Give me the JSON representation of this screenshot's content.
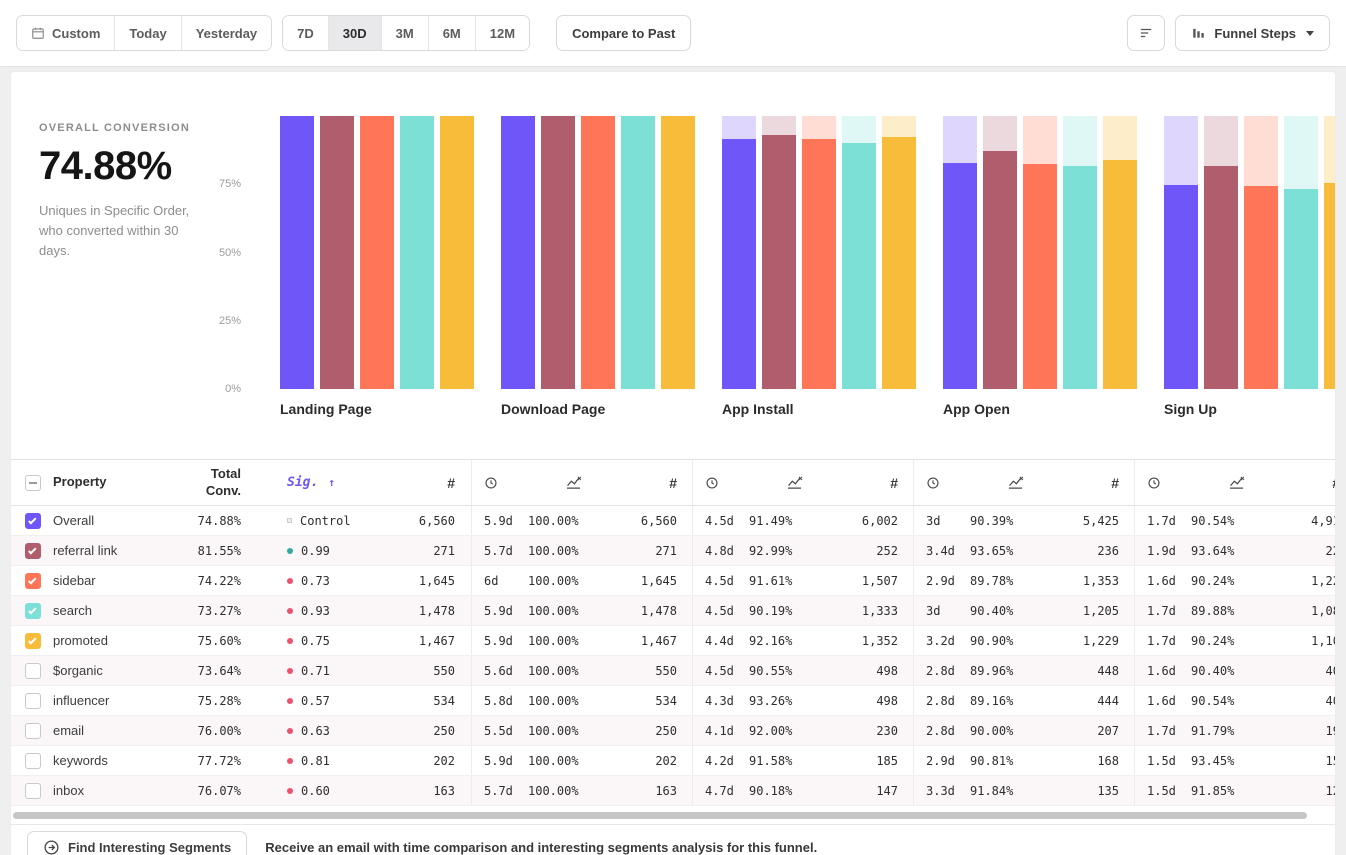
{
  "toolbar": {
    "date_group": [
      "Custom",
      "Today",
      "Yesterday"
    ],
    "range_group": [
      "7D",
      "30D",
      "3M",
      "6M",
      "12M"
    ],
    "active_range": "30D",
    "compare_button": "Compare to Past",
    "view_button": "Funnel Steps"
  },
  "summary": {
    "label": "OVERALL CONVERSION",
    "value": "74.88%",
    "description": "Uniques in Specific Order, who converted within 30 days."
  },
  "chart_data": {
    "type": "bar",
    "title": "Funnel steps overall conversion by segment",
    "categories": [
      "Landing Page",
      "Download Page",
      "App Install",
      "App Open",
      "Sign Up"
    ],
    "y_ticks": [
      "75%",
      "50%",
      "25%",
      "0%"
    ],
    "ylim": [
      0,
      100
    ],
    "grid": false,
    "legend_position": "table-checkboxes",
    "series": [
      {
        "name": "Overall",
        "color": "#6f56f8",
        "light_color": "#ded6fc",
        "values": [
          100,
          100,
          91.49,
          82.7,
          74.88
        ]
      },
      {
        "name": "referral link",
        "color": "#b05d6d",
        "light_color": "#ecd9dd",
        "values": [
          100,
          100,
          92.99,
          87.08,
          81.55
        ]
      },
      {
        "name": "sidebar",
        "color": "#ff7557",
        "light_color": "#ffddd4",
        "values": [
          100,
          100,
          91.61,
          82.25,
          74.22
        ]
      },
      {
        "name": "search",
        "color": "#7ce0d6",
        "light_color": "#e0f8f5",
        "values": [
          100,
          100,
          90.19,
          81.53,
          73.27
        ]
      },
      {
        "name": "promoted",
        "color": "#f8bc3b",
        "light_color": "#fdedc9",
        "values": [
          100,
          100,
          92.16,
          83.78,
          75.6
        ]
      }
    ]
  },
  "icons": {
    "calendar": "calendar-icon",
    "filter": "filter-lines-icon",
    "funnel_view": "bar-chart-icon",
    "avg_time_column": "clock-icon",
    "conv_rate_column": "line-chart-icon",
    "count_column": "#",
    "segments": "circled-arrow-icon"
  },
  "table": {
    "header": {
      "property": "Property",
      "total": "Total Conv.",
      "sig": "Sig.",
      "sig_arrow": "↑",
      "count_symbol": "#"
    },
    "rows": [
      {
        "property": "Overall",
        "checked": true,
        "color": "#6f56f8",
        "total": "74.88%",
        "sig": "Control",
        "sig_style": "square",
        "sig_color": "#f1eeee",
        "count": "6,560",
        "steps": [
          {
            "time": "5.9d",
            "rate": "100.00%",
            "count": "6,560"
          },
          {
            "time": "4.5d",
            "rate": "91.49%",
            "count": "6,002"
          },
          {
            "time": "3d",
            "rate": "90.39%",
            "count": "5,425"
          },
          {
            "time": "1.7d",
            "rate": "90.54%",
            "count": "4,91"
          }
        ]
      },
      {
        "property": "referral link",
        "checked": true,
        "color": "#b05d6d",
        "total": "81.55%",
        "sig": "0.99",
        "sig_style": "dot",
        "sig_color": "#35a79c",
        "count": "271",
        "steps": [
          {
            "time": "5.7d",
            "rate": "100.00%",
            "count": "271"
          },
          {
            "time": "4.8d",
            "rate": "92.99%",
            "count": "252"
          },
          {
            "time": "3.4d",
            "rate": "93.65%",
            "count": "236"
          },
          {
            "time": "1.9d",
            "rate": "93.64%",
            "count": "22"
          }
        ]
      },
      {
        "property": "sidebar",
        "checked": true,
        "color": "#ff7557",
        "total": "74.22%",
        "sig": "0.73",
        "sig_style": "dot",
        "sig_color": "#ee5170",
        "count": "1,645",
        "steps": [
          {
            "time": "6d",
            "rate": "100.00%",
            "count": "1,645"
          },
          {
            "time": "4.5d",
            "rate": "91.61%",
            "count": "1,507"
          },
          {
            "time": "2.9d",
            "rate": "89.78%",
            "count": "1,353"
          },
          {
            "time": "1.6d",
            "rate": "90.24%",
            "count": "1,22"
          }
        ]
      },
      {
        "property": "search",
        "checked": true,
        "color": "#7ce0d6",
        "total": "73.27%",
        "sig": "0.93",
        "sig_style": "dot",
        "sig_color": "#ee5170",
        "count": "1,478",
        "steps": [
          {
            "time": "5.9d",
            "rate": "100.00%",
            "count": "1,478"
          },
          {
            "time": "4.5d",
            "rate": "90.19%",
            "count": "1,333"
          },
          {
            "time": "3d",
            "rate": "90.40%",
            "count": "1,205"
          },
          {
            "time": "1.7d",
            "rate": "89.88%",
            "count": "1,08"
          }
        ]
      },
      {
        "property": "promoted",
        "checked": true,
        "color": "#f8bc3b",
        "total": "75.60%",
        "sig": "0.75",
        "sig_style": "dot",
        "sig_color": "#ee5170",
        "count": "1,467",
        "steps": [
          {
            "time": "5.9d",
            "rate": "100.00%",
            "count": "1,467"
          },
          {
            "time": "4.4d",
            "rate": "92.16%",
            "count": "1,352"
          },
          {
            "time": "3.2d",
            "rate": "90.90%",
            "count": "1,229"
          },
          {
            "time": "1.7d",
            "rate": "90.24%",
            "count": "1,10"
          }
        ]
      },
      {
        "property": "$organic",
        "checked": false,
        "color": null,
        "total": "73.64%",
        "sig": "0.71",
        "sig_style": "dot",
        "sig_color": "#ee5170",
        "count": "550",
        "steps": [
          {
            "time": "5.6d",
            "rate": "100.00%",
            "count": "550"
          },
          {
            "time": "4.5d",
            "rate": "90.55%",
            "count": "498"
          },
          {
            "time": "2.8d",
            "rate": "89.96%",
            "count": "448"
          },
          {
            "time": "1.6d",
            "rate": "90.40%",
            "count": "40"
          }
        ]
      },
      {
        "property": "influencer",
        "checked": false,
        "color": null,
        "total": "75.28%",
        "sig": "0.57",
        "sig_style": "dot",
        "sig_color": "#ee5170",
        "count": "534",
        "steps": [
          {
            "time": "5.8d",
            "rate": "100.00%",
            "count": "534"
          },
          {
            "time": "4.3d",
            "rate": "93.26%",
            "count": "498"
          },
          {
            "time": "2.8d",
            "rate": "89.16%",
            "count": "444"
          },
          {
            "time": "1.6d",
            "rate": "90.54%",
            "count": "40"
          }
        ]
      },
      {
        "property": "email",
        "checked": false,
        "color": null,
        "total": "76.00%",
        "sig": "0.63",
        "sig_style": "dot",
        "sig_color": "#ee5170",
        "count": "250",
        "steps": [
          {
            "time": "5.5d",
            "rate": "100.00%",
            "count": "250"
          },
          {
            "time": "4.1d",
            "rate": "92.00%",
            "count": "230"
          },
          {
            "time": "2.8d",
            "rate": "90.00%",
            "count": "207"
          },
          {
            "time": "1.7d",
            "rate": "91.79%",
            "count": "19"
          }
        ]
      },
      {
        "property": "keywords",
        "checked": false,
        "color": null,
        "total": "77.72%",
        "sig": "0.81",
        "sig_style": "dot",
        "sig_color": "#ee5170",
        "count": "202",
        "steps": [
          {
            "time": "5.9d",
            "rate": "100.00%",
            "count": "202"
          },
          {
            "time": "4.2d",
            "rate": "91.58%",
            "count": "185"
          },
          {
            "time": "2.9d",
            "rate": "90.81%",
            "count": "168"
          },
          {
            "time": "1.5d",
            "rate": "93.45%",
            "count": "15"
          }
        ]
      },
      {
        "property": "inbox",
        "checked": false,
        "color": null,
        "total": "76.07%",
        "sig": "0.60",
        "sig_style": "dot",
        "sig_color": "#ee5170",
        "count": "163",
        "steps": [
          {
            "time": "5.7d",
            "rate": "100.00%",
            "count": "163"
          },
          {
            "time": "4.7d",
            "rate": "90.18%",
            "count": "147"
          },
          {
            "time": "3.3d",
            "rate": "91.84%",
            "count": "135"
          },
          {
            "time": "1.5d",
            "rate": "91.85%",
            "count": "12"
          }
        ]
      }
    ]
  },
  "footer": {
    "button": "Find Interesting Segments",
    "text": "Receive an email with time comparison and interesting segments analysis for this funnel."
  }
}
